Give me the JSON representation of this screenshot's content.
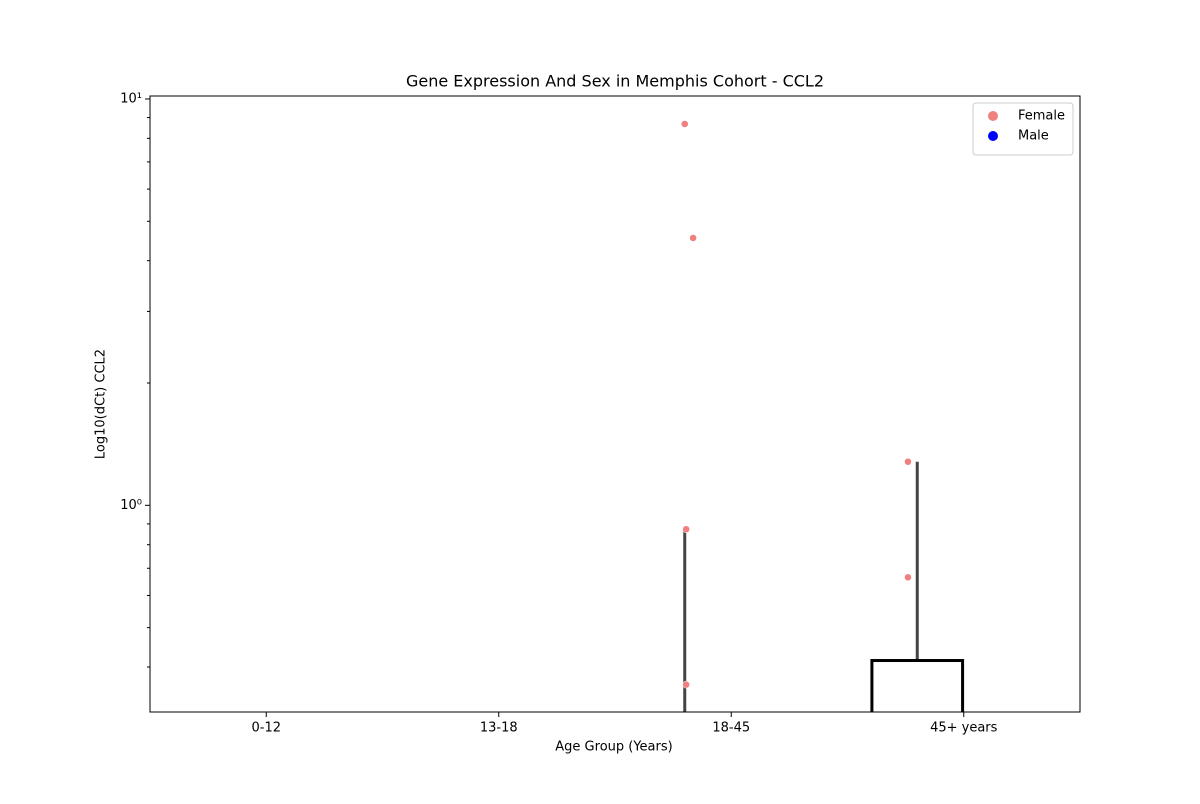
{
  "chart_data": {
    "type": "strip_box",
    "title": "Gene Expression And Sex in Memphis Cohort - CCL2",
    "x_label": "Age Group (Years)",
    "y_label": "Log10(dCt) CCL2",
    "categories": [
      "0-12",
      "13-18",
      "18-45",
      "45+ years"
    ],
    "xlim": [
      -0.5,
      3.5
    ],
    "ylim": [
      0.31,
      10.17
    ],
    "log_y": true,
    "yticks": [
      {
        "value": 1,
        "label": "10⁰"
      },
      {
        "value": 10,
        "label": "10¹"
      }
    ],
    "yminorticks": [
      0.4,
      0.5,
      0.6,
      0.7,
      0.8,
      0.9,
      2,
      3,
      4,
      5,
      6,
      7,
      8,
      9
    ],
    "series": [
      {
        "name": "Female",
        "color": "#f08080",
        "x": [
          1.8,
          1.836,
          1.806,
          1.806,
          2.76,
          2.76
        ],
        "values": [
          8.68,
          4.55,
          0.873,
          0.362,
          1.28,
          0.665
        ]
      },
      {
        "name": "Male",
        "color": "#0000ff",
        "x": [],
        "values": []
      }
    ],
    "boxes": {
      "offset": -0.2,
      "width": 0.39,
      "q3": [
        null,
        null,
        null,
        0.415
      ],
      "whisker_high": [
        null,
        null,
        0.873,
        1.28
      ]
    },
    "legend": "upper right"
  }
}
